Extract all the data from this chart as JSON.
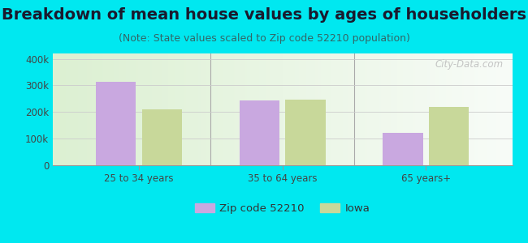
{
  "title": "Breakdown of mean house values by ages of householders",
  "subtitle": "(Note: State values scaled to Zip code 52210 population)",
  "categories": [
    "25 to 34 years",
    "35 to 64 years",
    "65 years+"
  ],
  "zip_values": [
    315000,
    243000,
    123000
  ],
  "iowa_values": [
    210000,
    247000,
    218000
  ],
  "zip_color": "#c9a8e0",
  "iowa_color": "#c8d89a",
  "background_outer": "#00e8f0",
  "ylim": [
    0,
    420000
  ],
  "yticks": [
    0,
    100000,
    200000,
    300000,
    400000
  ],
  "ytick_labels": [
    "0",
    "100k",
    "200k",
    "300k",
    "400k"
  ],
  "legend_labels": [
    "Zip code 52210",
    "Iowa"
  ],
  "watermark": "City-Data.com",
  "title_fontsize": 14,
  "subtitle_fontsize": 9,
  "tick_fontsize": 8.5,
  "legend_fontsize": 9.5
}
